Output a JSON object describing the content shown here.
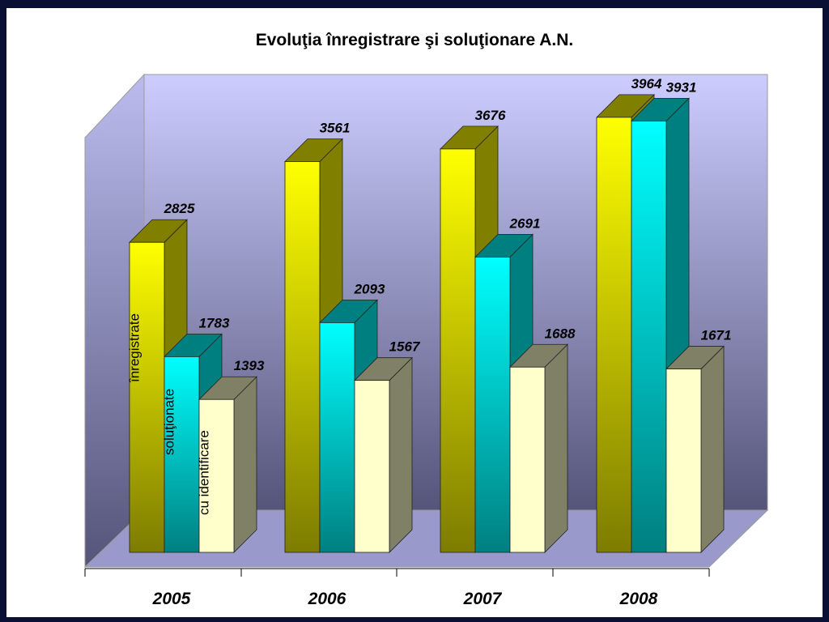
{
  "chart_data": {
    "type": "bar",
    "title": "Evoluţia înregistrare şi soluţionare A.N.",
    "categories": [
      "2005",
      "2006",
      "2007",
      "2008"
    ],
    "series": [
      {
        "name": "înregistrate",
        "values": [
          2825,
          3561,
          3676,
          3964
        ],
        "color": "#ffff00",
        "side_color": "#807f00"
      },
      {
        "name": "soluţionate",
        "values": [
          1783,
          2093,
          2691,
          3931
        ],
        "color": "#00ffff",
        "side_color": "#007f80"
      },
      {
        "name": "cu identificare",
        "values": [
          1393,
          1567,
          1688,
          1671
        ],
        "color": "#ffffcc",
        "side_color": "#808066"
      }
    ],
    "ylim": [
      0,
      4000
    ],
    "grid": false,
    "legend": "labels inside first category bars",
    "colors": {
      "frame": "#0a1033",
      "back_wall_top": "#ccccff",
      "back_wall_bottom": "#55557a",
      "floor": "#9999cc"
    }
  }
}
